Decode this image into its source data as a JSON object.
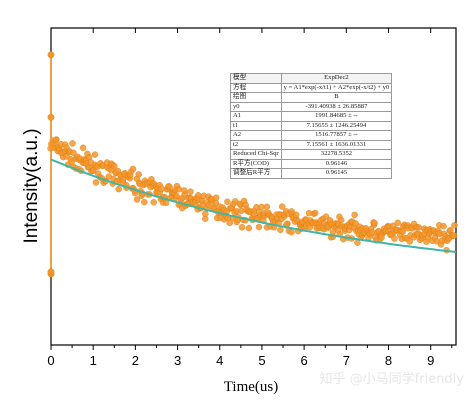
{
  "chart_data": {
    "type": "scatter",
    "title": "",
    "xlabel": "Time(us)",
    "ylabel": "Intensity(a.u.)",
    "xlim": [
      0,
      9.6
    ],
    "ylim": [
      -2080,
      6800
    ],
    "x_ticks": [
      "0",
      "1",
      "2",
      "3",
      "4",
      "5",
      "6",
      "7",
      "8",
      "9"
    ],
    "y_ticks_labeled": false,
    "grid": false,
    "colors": {
      "data": "#f5962a",
      "fit": "#3fb6a6",
      "axis": "#000000"
    },
    "series": [
      {
        "role": "data",
        "marker": "circle",
        "color": "#f5962a",
        "decay_start": 3520,
        "decay_end": 690,
        "noise": 200
      },
      {
        "role": "fit",
        "color": "#3fb6a6",
        "model": "y = A1*exp(-x/t1) + A2*exp(-x/t2) + y0",
        "y0": -391.40938,
        "A1": 1991.84685,
        "t1": 7.15655,
        "A2": 1516.77857,
        "t2": 7.15561
      }
    ],
    "pre_trigger": {
      "x": 0,
      "low": -90,
      "high": 6050
    },
    "fit_table": [
      [
        "模型",
        "ExpDec2"
      ],
      [
        "方程",
        "y = A1*exp(-x/t1) + A2*exp(-x/t2) + y0"
      ],
      [
        "绘图",
        "B"
      ],
      [
        "y0",
        "-391.40938 ± 26.85887"
      ],
      [
        "A1",
        "1991.84685 ± --"
      ],
      [
        "t1",
        "7.15655 ± 1246.25494"
      ],
      [
        "A2",
        "1516.77857 ± --"
      ],
      [
        "t2",
        "7.15561 ± 1636.01331"
      ],
      [
        "Reduced Chi-Sqr",
        "32278.5352"
      ],
      [
        "R平方(COD)",
        "0.96146"
      ],
      [
        "调整后R平方",
        "0.96145"
      ]
    ]
  },
  "watermark": "知乎 @小马同学friendly"
}
